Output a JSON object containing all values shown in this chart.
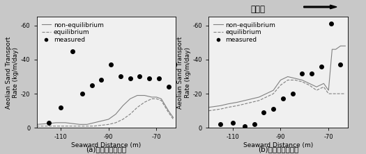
{
  "fig_width": 5.25,
  "fig_height": 2.22,
  "background_color": "#c8c8c8",
  "panel_bg": "#f0f0f0",
  "panel_a": {
    "title": "(a)植生が無い場合",
    "xlabel": "Seaward Distance (m)",
    "ylabel": "Aeolian Sand Transport\nRate (kg/m/day)",
    "xlim": [
      -120,
      -62
    ],
    "ylim": [
      0,
      65
    ],
    "yticks": [
      0,
      20,
      40,
      60
    ],
    "yticklabels": [
      "0",
      "-20",
      "-40",
      "-60"
    ],
    "xticks": [
      -110,
      -90,
      -70
    ],
    "noneq_x": [
      -120,
      -115,
      -112,
      -108,
      -105,
      -102,
      -99,
      -96,
      -93,
      -90,
      -87,
      -84,
      -81,
      -78,
      -75,
      -72,
      -70,
      -68,
      -65,
      -63
    ],
    "noneq_y": [
      2,
      2.5,
      3,
      3,
      2.5,
      2,
      2,
      3,
      4,
      5,
      8,
      13,
      17,
      19,
      19,
      18,
      18,
      17,
      10,
      6
    ],
    "eq_x": [
      -120,
      -115,
      -112,
      -108,
      -105,
      -102,
      -99,
      -96,
      -93,
      -90,
      -87,
      -84,
      -81,
      -78,
      -75,
      -72,
      -70,
      -68,
      -65,
      -63
    ],
    "eq_y": [
      1,
      1,
      1,
      1,
      1,
      1,
      1,
      1,
      1.5,
      2,
      3,
      5,
      8,
      12,
      15,
      17,
      17,
      16,
      9,
      5
    ],
    "measured_x": [
      -115,
      -110,
      -105,
      -101,
      -97,
      -93,
      -89,
      -85,
      -81,
      -77,
      -73,
      -69,
      -65
    ],
    "measured_y": [
      3,
      12,
      45,
      20,
      25,
      28,
      37,
      30,
      29,
      30,
      29,
      29,
      24
    ]
  },
  "panel_b": {
    "title": "(b)植生がある場合",
    "xlabel": "Seaward Distance (m)",
    "ylabel": "Aeolian Sand Transport\nRate (kg/m/day)",
    "xlim": [
      -120,
      -62
    ],
    "ylim": [
      0,
      65
    ],
    "yticks": [
      0,
      20,
      40,
      60
    ],
    "yticklabels": [
      "0",
      "-20",
      "-40",
      "-60"
    ],
    "xticks": [
      -110,
      -90,
      -70
    ],
    "noneq_x": [
      -120,
      -115,
      -112,
      -108,
      -105,
      -102,
      -99,
      -96,
      -93,
      -90,
      -87,
      -84,
      -81,
      -78,
      -75,
      -72,
      -70,
      -68.5,
      -67,
      -65,
      -63
    ],
    "noneq_y": [
      12,
      13,
      14,
      15,
      16,
      17,
      18,
      20,
      22,
      28,
      30,
      29,
      28,
      26,
      24,
      26,
      22,
      46,
      46,
      48,
      48
    ],
    "eq_x": [
      -120,
      -115,
      -112,
      -108,
      -105,
      -102,
      -99,
      -96,
      -93,
      -90,
      -87,
      -84,
      -81,
      -78,
      -75,
      -72,
      -70,
      -68.5,
      -67,
      -65,
      -63
    ],
    "eq_y": [
      10,
      11,
      12,
      13,
      14,
      15,
      16,
      18,
      20,
      25,
      28,
      28,
      27,
      25,
      22,
      24,
      20,
      20,
      20,
      20,
      20
    ],
    "measured_x": [
      -115,
      -110,
      -105,
      -101,
      -97,
      -93,
      -89,
      -85,
      -81,
      -77,
      -73,
      -69,
      -65
    ],
    "measured_y": [
      2,
      3,
      1,
      2,
      9,
      11,
      17,
      20,
      32,
      32,
      36,
      61,
      37
    ]
  },
  "arrow_text": "陸方向",
  "line_color": "#808080",
  "dot_color": "#000000",
  "legend_fontsize": 6.5,
  "axis_fontsize": 6.5,
  "tick_fontsize": 6,
  "title_fontsize": 7.5
}
